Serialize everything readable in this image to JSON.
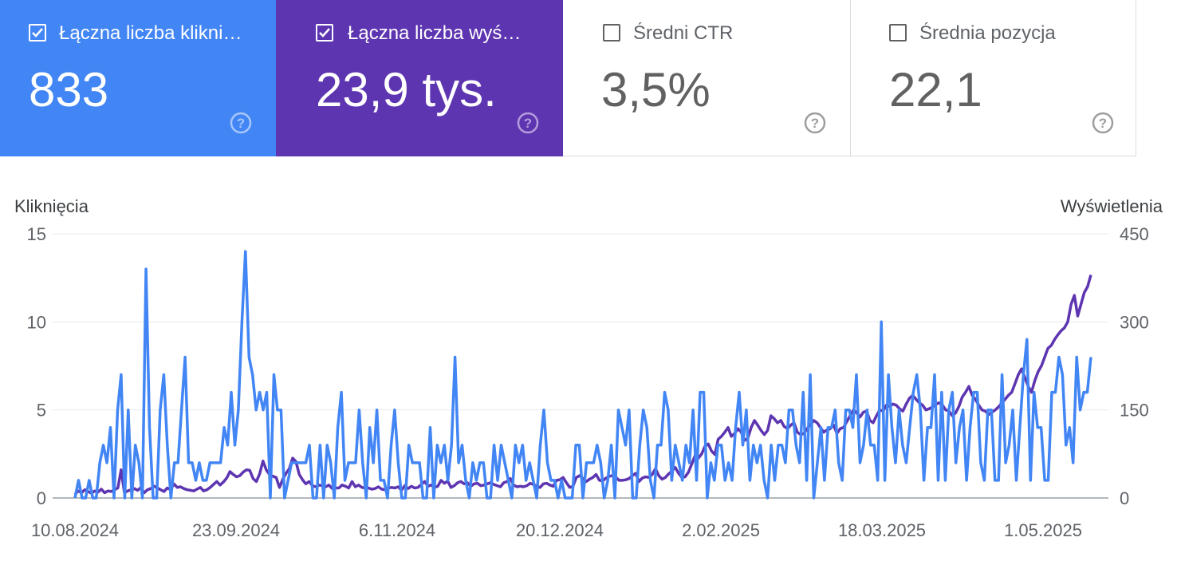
{
  "metrics": [
    {
      "label": "Łączna liczba kliknięć",
      "value": "833",
      "checked": true,
      "color": "#4285f4"
    },
    {
      "label": "Łączna liczba wyświetleń",
      "value": "23,9 tys.",
      "checked": true,
      "color": "#5e35b1"
    },
    {
      "label": "Średni CTR",
      "value": "3,5%",
      "checked": false
    },
    {
      "label": "Średnia pozycja",
      "value": "22,1",
      "checked": false
    }
  ],
  "icons": {
    "checkbox_checked": "check-icon",
    "help": "help-circle-icon"
  },
  "chart_data": {
    "type": "line",
    "ylabel": "Kliknięcia",
    "ylabel_right": "Wyświetlenia",
    "ylim": [
      0,
      15
    ],
    "ylim_right": [
      0,
      450
    ],
    "yticks": [
      "0",
      "5",
      "10",
      "15"
    ],
    "yticks_right": [
      "0",
      "150",
      "300",
      "450"
    ],
    "xticks": [
      "10.08.2024",
      "23.09.2024",
      "6.11.2024",
      "20.12.2024",
      "2.02.2025",
      "18.03.2025",
      "1.05.2025"
    ],
    "grid": true,
    "series": [
      {
        "name": "Kliknięcia",
        "axis": "left",
        "color": "#4285f4",
        "values": [
          0,
          1,
          0,
          0,
          1,
          0,
          0,
          2,
          3,
          2,
          4,
          0,
          5,
          7,
          0,
          5,
          0,
          3,
          2,
          0,
          13,
          4,
          0,
          0,
          5,
          7,
          3,
          0,
          2,
          2,
          5,
          8,
          2,
          2,
          1,
          2,
          1,
          1,
          2,
          2,
          2,
          2,
          4,
          3,
          6,
          3,
          5,
          10,
          14,
          8,
          7,
          5,
          6,
          5,
          6,
          0,
          7,
          5,
          5,
          0,
          1,
          2,
          2,
          2,
          2,
          2,
          3,
          0,
          0,
          3,
          0,
          3,
          2,
          0,
          4,
          6,
          1,
          2,
          2,
          2,
          5,
          2,
          0,
          4,
          2,
          5,
          1,
          1,
          0,
          3,
          5,
          2,
          0,
          0,
          3,
          2,
          2,
          2,
          0,
          0,
          4,
          0,
          3,
          2,
          3,
          1,
          3,
          8,
          2,
          3,
          1,
          0,
          2,
          1,
          2,
          2,
          0,
          0,
          3,
          1,
          3,
          2,
          1,
          0,
          3,
          2,
          3,
          1,
          2,
          1,
          0,
          3,
          5,
          2,
          1,
          1,
          0,
          1,
          0,
          0,
          0,
          3,
          3,
          0,
          2,
          2,
          2,
          3,
          2,
          0,
          1,
          3,
          0,
          5,
          4,
          3,
          5,
          0,
          0,
          3,
          5,
          4,
          1,
          0,
          3,
          3,
          6,
          5,
          1,
          3,
          2,
          1,
          3,
          2,
          5,
          1,
          6,
          6,
          0,
          2,
          1,
          3,
          3,
          1,
          2,
          1,
          4,
          6,
          3,
          5,
          1,
          3,
          2,
          3,
          1,
          0,
          3,
          1,
          3,
          3,
          2,
          5,
          5,
          3,
          2,
          6,
          1,
          7,
          0,
          2,
          4,
          1,
          4,
          4,
          5,
          2,
          1,
          5,
          5,
          4,
          7,
          2,
          3,
          5,
          3,
          3,
          1,
          10,
          1,
          7,
          4,
          2,
          5,
          3,
          2,
          4,
          6,
          7,
          5,
          1,
          4,
          4,
          7,
          1,
          6,
          1,
          5,
          6,
          2,
          4,
          5,
          1,
          4,
          6,
          6,
          2,
          1,
          5,
          5,
          1,
          1,
          7,
          2,
          3,
          5,
          1,
          4,
          7,
          9,
          1,
          6,
          4,
          4,
          1,
          1,
          6,
          6,
          8,
          7,
          3,
          4,
          2,
          8,
          5,
          6,
          6,
          8
        ],
        "note": "approximate daily clicks"
      },
      {
        "name": "Wyświetlenia",
        "axis": "right",
        "color": "#5e35b1",
        "values": [
          6,
          12,
          9,
          14,
          11,
          8,
          12,
          10,
          15,
          9,
          12,
          11,
          14,
          17,
          48,
          9,
          12,
          14,
          16,
          13,
          18,
          9,
          14,
          16,
          20,
          17,
          14,
          11,
          17,
          14,
          24,
          18,
          19,
          16,
          14,
          13,
          12,
          15,
          18,
          12,
          14,
          18,
          23,
          28,
          22,
          27,
          34,
          45,
          40,
          36,
          38,
          44,
          48,
          47,
          33,
          28,
          41,
          63,
          48,
          40,
          37,
          35,
          18,
          32,
          42,
          50,
          68,
          62,
          40,
          31,
          24,
          28,
          21,
          19,
          22,
          21,
          19,
          22,
          16,
          17,
          17,
          22,
          20,
          17,
          28,
          19,
          22,
          18,
          17,
          17,
          15,
          16,
          19,
          15,
          14,
          17,
          18,
          17,
          19,
          13,
          21,
          16,
          20,
          17,
          18,
          23,
          28,
          20,
          22,
          18,
          20,
          30,
          25,
          29,
          18,
          21,
          26,
          28,
          24,
          26,
          20,
          24,
          25,
          21,
          22,
          24,
          26,
          23,
          21,
          19,
          26,
          28,
          33,
          22,
          19,
          20,
          19,
          21,
          25,
          23,
          20,
          18,
          24,
          25,
          22,
          20,
          30,
          31,
          35,
          26,
          18,
          20,
          35,
          38,
          33,
          28,
          32,
          35,
          40,
          30,
          29,
          34,
          37,
          38,
          35,
          30,
          30,
          31,
          33,
          38,
          42,
          28,
          34,
          36,
          35,
          40,
          50,
          38,
          32,
          35,
          41,
          46,
          52,
          42,
          35,
          36,
          44,
          58,
          72,
          68,
          75,
          88,
          92,
          80,
          74,
          100,
          105,
          112,
          120,
          105,
          110,
          118,
          112,
          98,
          102,
          120,
          132,
          124,
          115,
          108,
          115,
          140,
          135,
          128,
          132,
          122,
          118,
          124,
          128,
          112,
          108,
          110,
          118,
          125,
          132,
          128,
          120,
          112,
          116,
          118,
          124,
          110,
          118,
          120,
          130,
          140,
          150,
          145,
          138,
          146,
          148,
          132,
          128,
          140,
          150,
          148,
          158,
          156,
          160,
          158,
          152,
          148,
          160,
          170,
          175,
          168,
          162,
          158,
          150,
          152,
          155,
          160,
          162,
          158,
          150,
          148,
          140,
          145,
          156,
          172,
          180,
          190,
          175,
          168,
          158,
          150,
          148,
          142,
          146,
          150,
          155,
          162,
          168,
          175,
          180,
          195,
          210,
          220,
          205,
          190,
          180,
          200,
          215,
          225,
          240,
          255,
          260,
          270,
          278,
          285,
          290,
          300,
          330,
          345,
          310,
          330,
          350,
          360,
          380
        ],
        "note": "approximate daily impressions"
      }
    ]
  }
}
